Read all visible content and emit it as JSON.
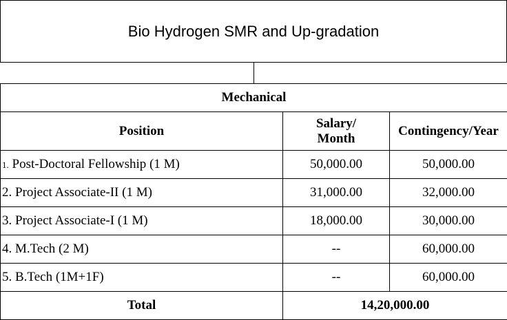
{
  "title": "Bio Hydrogen SMR and Up-gradation",
  "section": "Mechanical",
  "headers": {
    "position": "Position",
    "salary_line1": "Salary/",
    "salary_line2": "Month",
    "contingency": "Contingency/Year"
  },
  "rows": [
    {
      "num": "1.",
      "position": " Post-Doctoral Fellowship (1 M)",
      "salary": "50,000.00",
      "contingency": "50,000.00"
    },
    {
      "num": "2.",
      "position": " Project Associate-II (1 M)",
      "salary": "31,000.00",
      "contingency": "32,000.00"
    },
    {
      "num": "3.",
      "position": " Project Associate-I (1 M)",
      "salary": "18,000.00",
      "contingency": "30,000.00"
    },
    {
      "num": "4.",
      "position": " M.Tech (2 M)",
      "salary": "--",
      "contingency": "60,000.00"
    },
    {
      "num": "5.",
      "position": " B.Tech (1M+1F)",
      "salary": "--",
      "contingency": "60,000.00"
    }
  ],
  "total": {
    "label": "Total",
    "value": "14,20,000.00"
  }
}
